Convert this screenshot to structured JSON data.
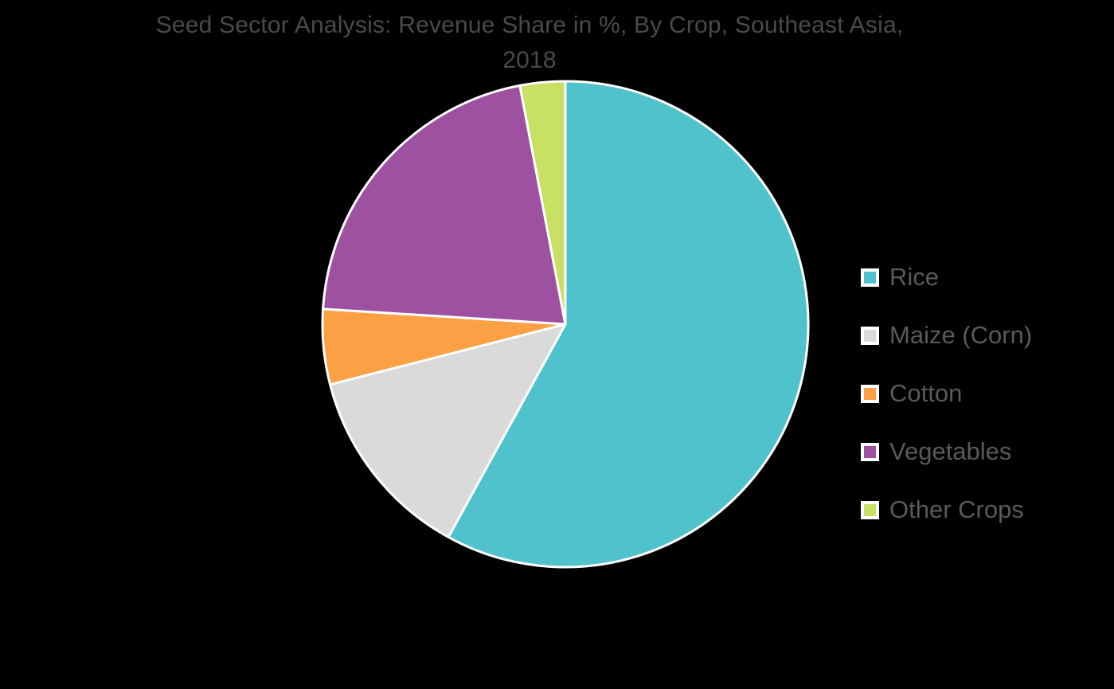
{
  "title_lines": [
    "Seed Sector Analysis: Revenue Share in %, By Crop, Southeast Asia,",
    "2018"
  ],
  "colors": {
    "background": "#000000",
    "title_text": "#4a4a4a",
    "legend_text": "#5a5a5a",
    "slice_border": "#ffffff"
  },
  "chart_data": {
    "type": "pie",
    "title": "Seed Sector Analysis: Revenue Share in %, By Crop, Southeast Asia, 2018",
    "categories": [
      "Rice",
      "Maize (Corn)",
      "Cotton",
      "Vegetables",
      "Other Crops"
    ],
    "values": [
      58,
      13,
      5,
      21,
      3
    ],
    "units": "%",
    "slice_colors": [
      "#4fc2cb",
      "#dadada",
      "#fba045",
      "#9e51a0",
      "#c8e064"
    ],
    "start_angle_deg": 0,
    "direction": "clockwise",
    "legend_position": "right",
    "data_labels": false
  }
}
